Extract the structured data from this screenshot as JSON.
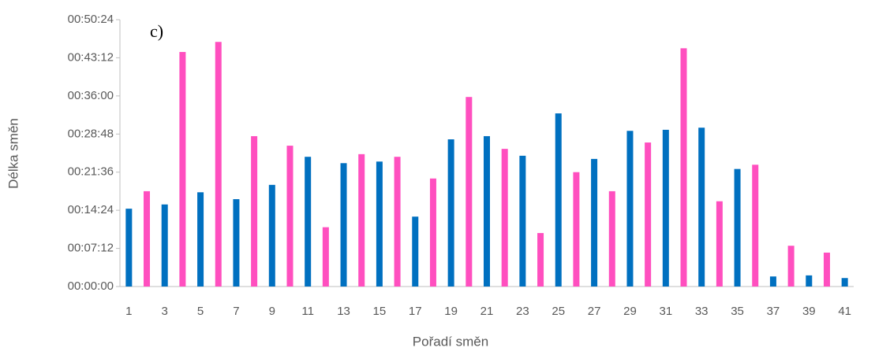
{
  "chart_data": {
    "type": "bar",
    "annotation": "c)",
    "x_label": "Pořadí směn",
    "y_label": "Délka směn",
    "categories": [
      "1",
      null,
      "3",
      null,
      "5",
      null,
      "7",
      null,
      "9",
      null,
      "11",
      null,
      "13",
      null,
      "15",
      null,
      "17",
      null,
      "19",
      null,
      "21",
      null,
      "23",
      null,
      "25",
      null,
      "27",
      null,
      "29",
      null,
      "31",
      null,
      "33",
      null,
      "35",
      null,
      "37",
      null,
      "39",
      null,
      "41"
    ],
    "values": [
      14.7,
      18.0,
      15.5,
      44.3,
      17.8,
      46.2,
      16.5,
      28.4,
      19.2,
      26.6,
      24.5,
      11.2,
      23.3,
      25.0,
      23.6,
      24.5,
      13.2,
      20.4,
      27.8,
      35.8,
      28.4,
      26.0,
      24.7,
      10.1,
      32.7,
      21.6,
      24.1,
      18.0,
      29.4,
      27.2,
      29.6,
      45.0,
      30.0,
      16.1,
      22.2,
      23.0,
      1.9,
      7.7,
      2.1,
      6.4,
      1.6
    ],
    "colors": [
      "#0070c0",
      "#ff4fbf"
    ],
    "ylim": [
      0,
      50.4
    ],
    "yticks": [
      {
        "value": 0,
        "label": "00:00:00"
      },
      {
        "value": 7.2,
        "label": "00:07:12"
      },
      {
        "value": 14.4,
        "label": "00:14:24"
      },
      {
        "value": 21.6,
        "label": "00:21:36"
      },
      {
        "value": 28.8,
        "label": "00:28:48"
      },
      {
        "value": 36,
        "label": "00:36:00"
      },
      {
        "value": 43.2,
        "label": "00:43:12"
      },
      {
        "value": 50.4,
        "label": "00:50:24"
      }
    ]
  }
}
